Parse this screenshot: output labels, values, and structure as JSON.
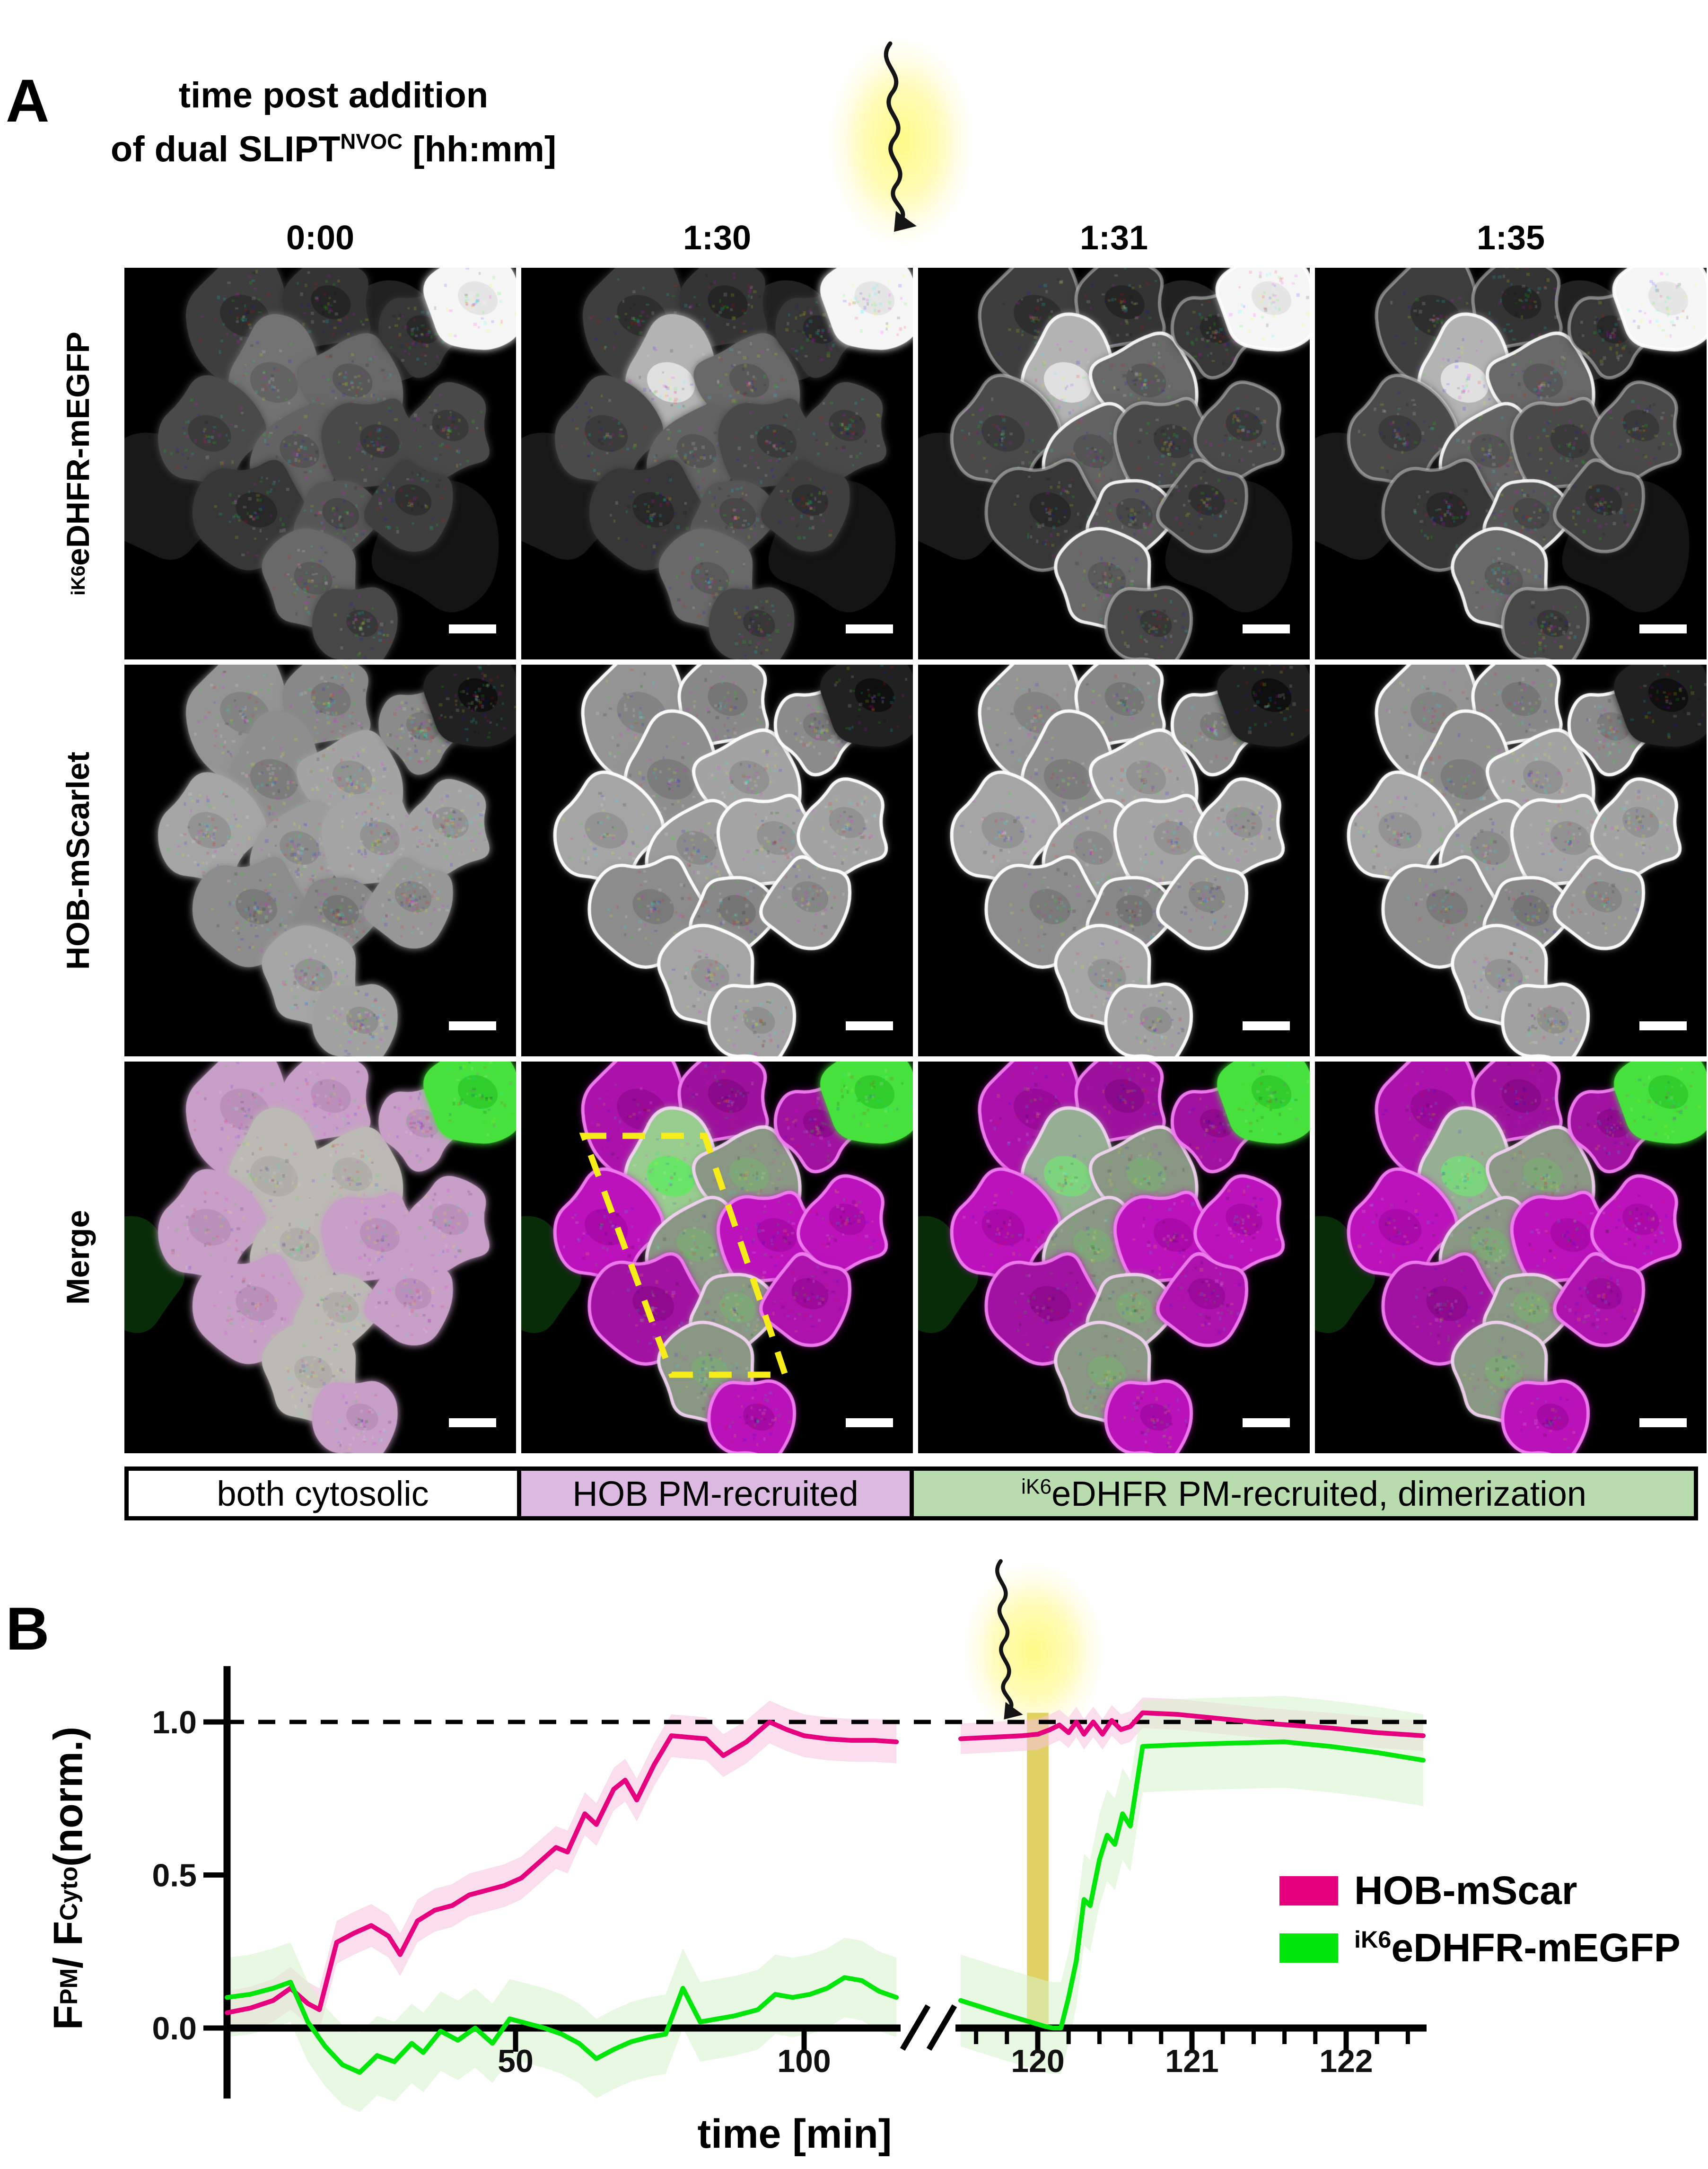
{
  "figure": {
    "panel_a": {
      "label": "A",
      "title_line1": "time post addition",
      "title_line2": "of dual SLIPT^{NVOC} [hh:mm]",
      "timepoints": [
        "0:00",
        "1:30",
        "1:31",
        "1:35"
      ],
      "row_labels": [
        "^{iK6}eDHFR-mEGFP",
        "HOB-mScarlet",
        "Merge"
      ],
      "uncaging_icon": "wavy-arrow-with-yellow-glow",
      "tiles": [
        {
          "channel": "egfp",
          "time": "0:00",
          "membranes": false,
          "uncaged": false,
          "scale_bar": true
        },
        {
          "channel": "egfp",
          "time": "1:30",
          "membranes": false,
          "uncaged": true,
          "scale_bar": true
        },
        {
          "channel": "egfp",
          "time": "1:31",
          "membranes": true,
          "uncaged": true,
          "scale_bar": true
        },
        {
          "channel": "egfp",
          "time": "1:35",
          "membranes": true,
          "uncaged": true,
          "scale_bar": true
        },
        {
          "channel": "mscarlet",
          "time": "0:00",
          "membranes": false,
          "scale_bar": true
        },
        {
          "channel": "mscarlet",
          "time": "1:30",
          "membranes": true,
          "scale_bar": true
        },
        {
          "channel": "mscarlet",
          "time": "1:31",
          "membranes": true,
          "scale_bar": true
        },
        {
          "channel": "mscarlet",
          "time": "1:35",
          "membranes": true,
          "scale_bar": true
        },
        {
          "channel": "merge",
          "time": "0:00",
          "membranes": false,
          "scale_bar": true
        },
        {
          "channel": "merge",
          "time": "1:30",
          "membranes": true,
          "roi": true,
          "scale_bar": true
        },
        {
          "channel": "merge",
          "time": "1:31",
          "membranes": true,
          "scale_bar": true
        },
        {
          "channel": "merge",
          "time": "1:35",
          "membranes": true,
          "scale_bar": true
        }
      ],
      "condition_legend": [
        {
          "label": "both cytosolic",
          "color": "#ffffff"
        },
        {
          "label": "HOB PM-recruited",
          "color": "#dcb9e0"
        },
        {
          "label": "^{iK6}eDHFR PM-recruited, dimerization",
          "color": "#b9dcae"
        }
      ]
    },
    "panel_b": {
      "label": "B",
      "uncaging_icon": "wavy-arrow-with-yellow-glow"
    }
  },
  "chart_data": {
    "type": "line",
    "xlabel": "time [min]",
    "ylabel": "F_{PM} / F_{Cyto} (norm.)",
    "ylim": [
      -0.25,
      1.18
    ],
    "yticks": [
      "0.0",
      "0.5",
      "1.0"
    ],
    "xticks_left": [
      50,
      100
    ],
    "xticks_right_major": [
      120,
      121,
      122
    ],
    "xtick_right_minor_step": 0.2,
    "x_axis_break": {
      "left_end": 116,
      "right_start": 119.5
    },
    "dashed_reference_y": 1.0,
    "light_pulse_x": [
      119.93,
      120.07
    ],
    "light_pulse_color": "#d8c63e",
    "legend_position": "right-middle",
    "grid": false,
    "series": [
      {
        "name": "HOB-mScar",
        "color": "#e6007e",
        "band_color": "#f5c2e0",
        "band_delta_left": 0.07,
        "band_delta_right": 0.05,
        "points_left": [
          [
            0,
            0.05
          ],
          [
            4,
            0.065
          ],
          [
            8,
            0.09
          ],
          [
            11,
            0.13
          ],
          [
            14,
            0.08
          ],
          [
            16,
            0.06
          ],
          [
            19,
            0.28
          ],
          [
            22,
            0.31
          ],
          [
            25,
            0.335
          ],
          [
            28,
            0.3
          ],
          [
            30,
            0.24
          ],
          [
            33,
            0.35
          ],
          [
            36,
            0.385
          ],
          [
            39,
            0.4
          ],
          [
            42,
            0.435
          ],
          [
            45,
            0.45
          ],
          [
            48,
            0.465
          ],
          [
            51,
            0.49
          ],
          [
            54,
            0.54
          ],
          [
            57,
            0.59
          ],
          [
            59,
            0.575
          ],
          [
            62,
            0.7
          ],
          [
            64,
            0.665
          ],
          [
            67,
            0.78
          ],
          [
            69,
            0.81
          ],
          [
            71,
            0.745
          ],
          [
            74,
            0.86
          ],
          [
            77,
            0.955
          ],
          [
            80,
            0.95
          ],
          [
            83,
            0.945
          ],
          [
            86,
            0.89
          ],
          [
            90,
            0.935
          ],
          [
            94,
            1.0
          ],
          [
            97,
            0.975
          ],
          [
            100,
            0.955
          ],
          [
            104,
            0.945
          ],
          [
            108,
            0.94
          ],
          [
            112,
            0.94
          ],
          [
            116,
            0.935
          ]
        ],
        "points_right": [
          [
            119.5,
            0.945
          ],
          [
            119.9,
            0.955
          ],
          [
            120.0,
            0.96
          ],
          [
            120.08,
            0.975
          ],
          [
            120.14,
            0.99
          ],
          [
            120.2,
            0.965
          ],
          [
            120.25,
            1.0
          ],
          [
            120.3,
            0.96
          ],
          [
            120.36,
            1.0
          ],
          [
            120.42,
            0.96
          ],
          [
            120.48,
            1.005
          ],
          [
            120.54,
            0.975
          ],
          [
            120.6,
            0.985
          ],
          [
            120.68,
            1.03
          ],
          [
            120.9,
            1.025
          ],
          [
            121.2,
            1.01
          ],
          [
            121.5,
            0.995
          ],
          [
            121.9,
            0.98
          ],
          [
            122.2,
            0.965
          ],
          [
            122.5,
            0.955
          ]
        ]
      },
      {
        "name": "^{iK6}eDHFR-mEGFP",
        "color": "#00e60a",
        "band_color": "#d7f2ca",
        "band_delta_left": 0.13,
        "band_delta_right": 0.15,
        "points_left": [
          [
            0,
            0.1
          ],
          [
            4,
            0.11
          ],
          [
            8,
            0.13
          ],
          [
            11,
            0.15
          ],
          [
            14,
            0.02
          ],
          [
            17,
            -0.06
          ],
          [
            20,
            -0.12
          ],
          [
            23,
            -0.145
          ],
          [
            26,
            -0.09
          ],
          [
            29,
            -0.11
          ],
          [
            32,
            -0.05
          ],
          [
            34,
            -0.08
          ],
          [
            37,
            -0.01
          ],
          [
            40,
            -0.04
          ],
          [
            43,
            0.0
          ],
          [
            46,
            -0.05
          ],
          [
            49,
            0.03
          ],
          [
            52,
            0.015
          ],
          [
            55,
            0.0
          ],
          [
            58,
            -0.02
          ],
          [
            61,
            -0.05
          ],
          [
            64,
            -0.1
          ],
          [
            67,
            -0.07
          ],
          [
            70,
            -0.045
          ],
          [
            73,
            -0.03
          ],
          [
            76,
            -0.02
          ],
          [
            79,
            0.13
          ],
          [
            82,
            0.02
          ],
          [
            85,
            0.03
          ],
          [
            88,
            0.04
          ],
          [
            92,
            0.06
          ],
          [
            95,
            0.11
          ],
          [
            98,
            0.1
          ],
          [
            101,
            0.11
          ],
          [
            104,
            0.13
          ],
          [
            107,
            0.165
          ],
          [
            110,
            0.155
          ],
          [
            113,
            0.12
          ],
          [
            116,
            0.1
          ]
        ],
        "points_right": [
          [
            119.5,
            0.09
          ],
          [
            119.75,
            0.05
          ],
          [
            119.95,
            0.02
          ],
          [
            120.05,
            0.005
          ],
          [
            120.1,
            0.0
          ],
          [
            120.15,
            0.0
          ],
          [
            120.2,
            0.1
          ],
          [
            120.25,
            0.22
          ],
          [
            120.3,
            0.42
          ],
          [
            120.34,
            0.4
          ],
          [
            120.4,
            0.55
          ],
          [
            120.45,
            0.63
          ],
          [
            120.5,
            0.6
          ],
          [
            120.55,
            0.7
          ],
          [
            120.6,
            0.66
          ],
          [
            120.68,
            0.92
          ],
          [
            120.9,
            0.925
          ],
          [
            121.2,
            0.93
          ],
          [
            121.6,
            0.935
          ],
          [
            121.9,
            0.92
          ],
          [
            122.2,
            0.9
          ],
          [
            122.5,
            0.875
          ]
        ]
      }
    ]
  }
}
